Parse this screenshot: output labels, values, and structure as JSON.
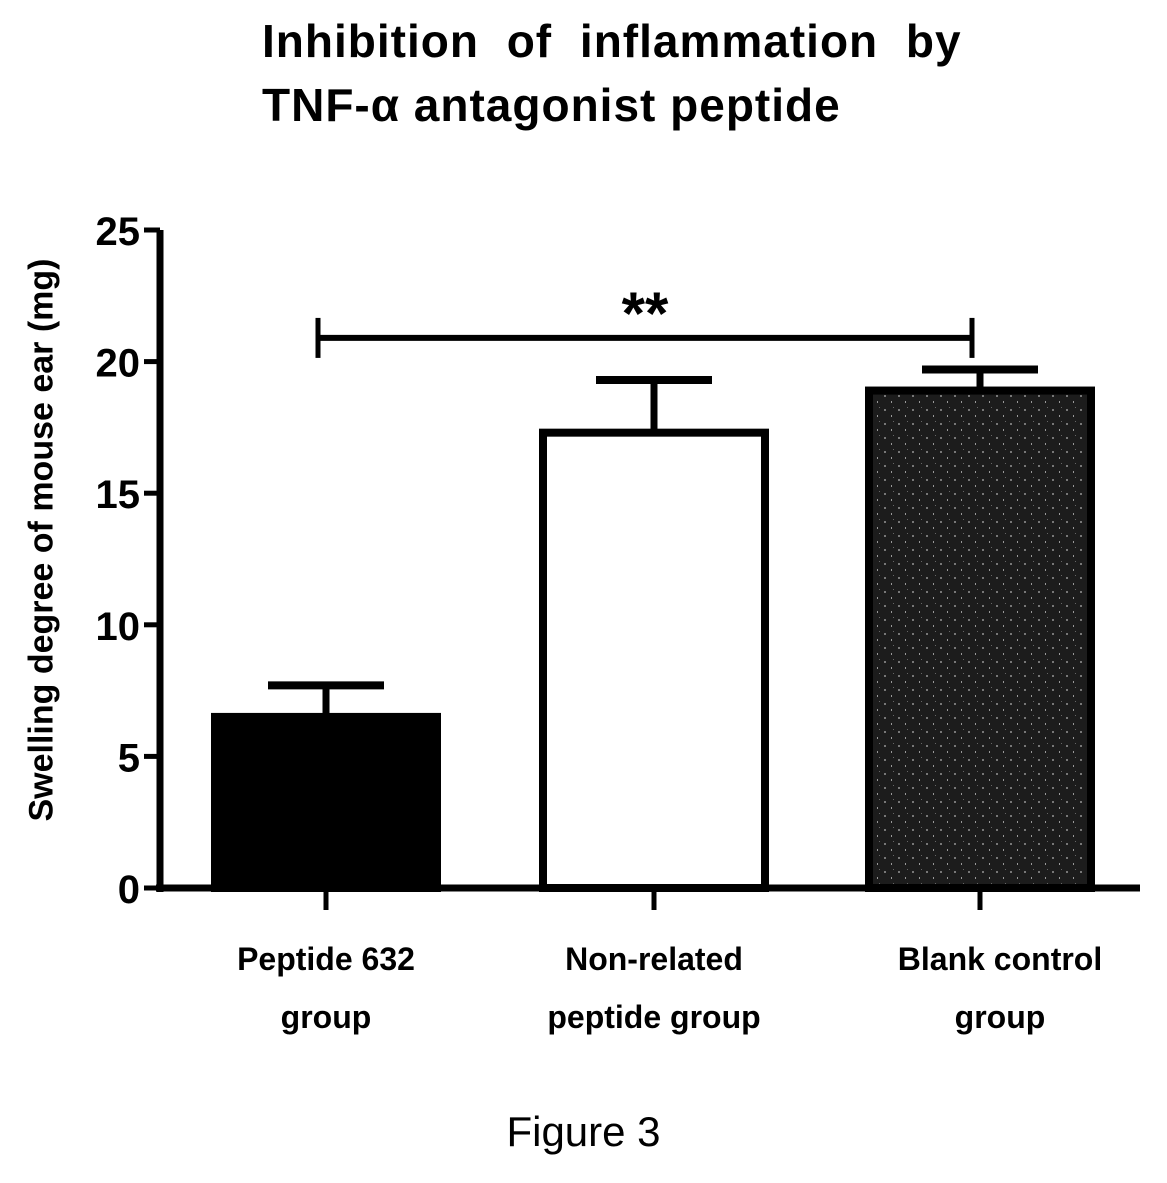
{
  "chart_data": {
    "type": "bar",
    "title_lines": [
      "Inhibition of inflammation by",
      "TNF-α antagonist peptide"
    ],
    "ylabel": "Swelling degree of mouse ear (mg)",
    "xlabel": "",
    "categories": [
      "Peptide 632\ngroup",
      "Non-related\npeptide group",
      "Blank control\ngroup"
    ],
    "values": [
      6.5,
      17.3,
      18.9
    ],
    "errors": [
      1.2,
      2.0,
      0.8
    ],
    "bar_fills": [
      "#000000",
      "#ffffff",
      "#1c1c1c"
    ],
    "ylim": [
      0,
      25
    ],
    "yticks": [
      "0",
      "5",
      "10",
      "15",
      "20",
      "25"
    ],
    "significance": {
      "from": 0,
      "to": 2,
      "level_value": 20.9,
      "label": "**"
    },
    "grid": false,
    "legend": "none"
  },
  "caption": "Figure 3"
}
